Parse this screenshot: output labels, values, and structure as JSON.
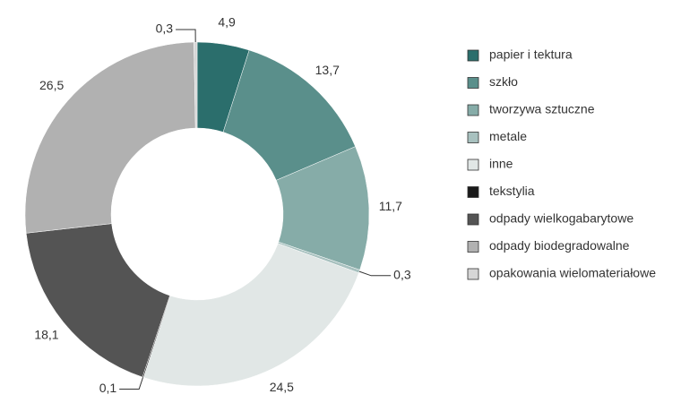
{
  "chart_data": {
    "type": "donut",
    "categories": [
      "papier i tektura",
      "szkło",
      "tworzywa sztuczne",
      "metale",
      "inne",
      "tekstylia",
      "odpady wielkogabarytowe",
      "odpady biodegradowalne",
      "opakowania wielomateriałowe"
    ],
    "values": [
      4.9,
      13.7,
      11.7,
      0.3,
      24.5,
      0.1,
      18.1,
      26.5,
      0.3
    ],
    "value_labels": [
      "4,9",
      "13,7",
      "11,7",
      "0,3",
      "24,5",
      "0,1",
      "18,1",
      "26,5",
      "0,3"
    ],
    "colors": [
      "#2b6e6c",
      "#5a8f8b",
      "#86aca8",
      "#a8c1bf",
      "#e1e7e6",
      "#1a1a1a",
      "#545454",
      "#b1b1b1",
      "#d6d6d6"
    ],
    "legend": "right"
  }
}
